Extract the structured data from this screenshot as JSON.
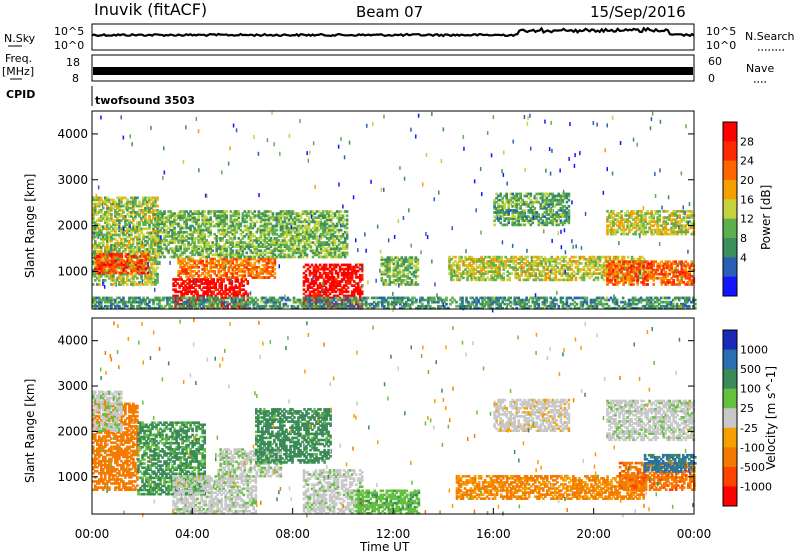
{
  "header": {
    "station": "Inuvik (fitACF)",
    "beam": "Beam 07",
    "date": "15/Sep/2016"
  },
  "aux_panels": {
    "nsky": {
      "left_label": "N.Sky",
      "right_label": "N.Search",
      "left_ticks": [
        "10^5",
        "10^0"
      ],
      "right_ticks": [
        "10^5",
        "10^0"
      ]
    },
    "freq": {
      "left_label_1": "Freq.",
      "left_label_2": "[MHz]",
      "right_label": "Nave",
      "left_ticks": [
        "18",
        "8"
      ],
      "right_ticks": [
        "60",
        "0"
      ]
    },
    "cpid": {
      "label": "CPID",
      "text": "twofsound 3503"
    }
  },
  "chart_data": [
    {
      "type": "heatmap",
      "name": "power",
      "ylabel": "Slant Range [km]",
      "xlabel": "",
      "ylim": [
        180,
        4500
      ],
      "yticks": [
        "1000",
        "2000",
        "3000",
        "4000"
      ],
      "colorbar_label": "Power [dB]",
      "colorbar_ticks": [
        "4",
        "8",
        "12",
        "16",
        "20",
        "24",
        "28"
      ],
      "colorbar_colors": [
        "#1414ff",
        "#2a5fb8",
        "#3a8f5c",
        "#5fae50",
        "#c4d23c",
        "#f5a000",
        "#ff6600",
        "#ff2a00",
        "#ff0000"
      ],
      "regions_description_ref": "echo blobs",
      "regions": [
        {
          "t0": 0.0,
          "t1": 2.6,
          "r0": 700,
          "r1": 2600,
          "level": 0.45
        },
        {
          "t0": 0.1,
          "t1": 2.2,
          "r0": 950,
          "r1": 1400,
          "level": 0.8
        },
        {
          "t0": 3.2,
          "t1": 6.2,
          "r0": 180,
          "r1": 850,
          "level": 0.98
        },
        {
          "t0": 3.4,
          "t1": 7.3,
          "r0": 850,
          "r1": 1300,
          "level": 0.7
        },
        {
          "t0": 2.6,
          "t1": 10.2,
          "r0": 1300,
          "r1": 2300,
          "level": 0.4
        },
        {
          "t0": 8.4,
          "t1": 10.8,
          "r0": 180,
          "r1": 1150,
          "level": 0.97
        },
        {
          "t0": 11.5,
          "t1": 13.0,
          "r0": 700,
          "r1": 1300,
          "level": 0.4
        },
        {
          "t0": 14.2,
          "t1": 22.0,
          "r0": 800,
          "r1": 1300,
          "level": 0.5
        },
        {
          "t0": 20.5,
          "t1": 24.0,
          "r0": 700,
          "r1": 1200,
          "level": 0.75
        },
        {
          "t0": 20.5,
          "t1": 24.0,
          "r0": 1800,
          "r1": 2300,
          "level": 0.5
        },
        {
          "t0": 16.0,
          "t1": 19.0,
          "r0": 2000,
          "r1": 2700,
          "level": 0.35
        },
        {
          "t0": 0.0,
          "t1": 24.0,
          "r0": 180,
          "r1": 420,
          "level": 0.3
        }
      ]
    },
    {
      "type": "heatmap",
      "name": "velocity",
      "ylabel": "Slant Range [km]",
      "xlabel": "Time UT",
      "ylim": [
        180,
        4500
      ],
      "yticks": [
        "1000",
        "2000",
        "3000",
        "4000"
      ],
      "xticks": [
        "00:00",
        "04:00",
        "08:00",
        "12:00",
        "16:00",
        "20:00",
        "00:00"
      ],
      "colorbar_label": "Velocity [m s^-1]",
      "colorbar_ticks": [
        "1000",
        "500",
        "100",
        "25",
        "-25",
        "-100",
        "-500",
        "-1000"
      ],
      "colorbar_colors": [
        "#1a2ab8",
        "#2a6fb0",
        "#3a8a5a",
        "#66c040",
        "#c8c8c8",
        "#f5a000",
        "#f57a00",
        "#ff4400",
        "#ff0000"
      ],
      "regions": [
        {
          "t0": 0.0,
          "t1": 1.8,
          "r0": 700,
          "r1": 2600,
          "vel": -300
        },
        {
          "t0": 0.0,
          "t1": 1.2,
          "r0": 2000,
          "r1": 2900,
          "vel": 10
        },
        {
          "t0": 1.8,
          "t1": 4.5,
          "r0": 600,
          "r1": 2200,
          "vel": 120
        },
        {
          "t0": 3.2,
          "t1": 6.5,
          "r0": 180,
          "r1": 1000,
          "vel": 5
        },
        {
          "t0": 5.0,
          "t1": 7.5,
          "r0": 1000,
          "r1": 1600,
          "vel": 10
        },
        {
          "t0": 6.5,
          "t1": 9.5,
          "r0": 1300,
          "r1": 2500,
          "vel": 150
        },
        {
          "t0": 8.4,
          "t1": 10.8,
          "r0": 180,
          "r1": 1150,
          "vel": 5
        },
        {
          "t0": 10.5,
          "t1": 13.0,
          "r0": 180,
          "r1": 700,
          "vel": 80
        },
        {
          "t0": 14.5,
          "t1": 22.0,
          "r0": 500,
          "r1": 1000,
          "vel": -120
        },
        {
          "t0": 21.0,
          "t1": 24.0,
          "r0": 700,
          "r1": 1300,
          "vel": -400
        },
        {
          "t0": 22.0,
          "t1": 24.0,
          "r0": 1100,
          "r1": 1500,
          "vel": 600
        },
        {
          "t0": 20.5,
          "t1": 24.0,
          "r0": 1800,
          "r1": 2700,
          "vel": 5
        },
        {
          "t0": 16.0,
          "t1": 19.0,
          "r0": 2000,
          "r1": 2700,
          "vel": -5
        }
      ]
    }
  ],
  "colors": {
    "axis": "#000000",
    "background": "#ffffff"
  }
}
